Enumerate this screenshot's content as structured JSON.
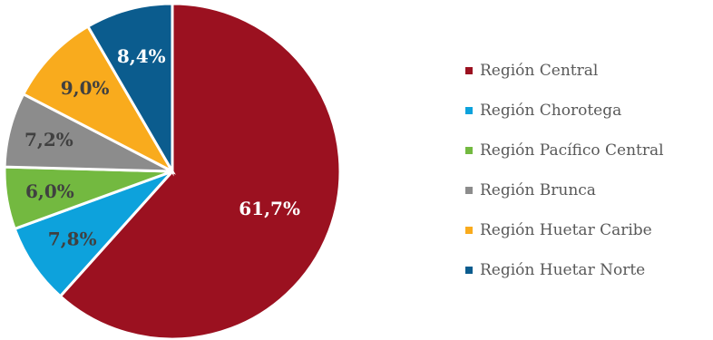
{
  "chart_data": {
    "type": "pie",
    "categories": [
      "Región Central",
      "Región Chorotega",
      "Región Pacífico Central",
      "Región Brunca",
      "Región Huetar Caribe",
      "Región Huetar Norte"
    ],
    "values": [
      61.7,
      7.8,
      6.0,
      7.2,
      9.0,
      8.4
    ],
    "labels": [
      "61,7%",
      "7,8%",
      "6,0%",
      "7,2%",
      "9,0%",
      "8,4%"
    ],
    "colors": [
      "#9b1120",
      "#0da2dc",
      "#73b940",
      "#8c8c8c",
      "#f9ab1d",
      "#0b5c8e"
    ],
    "label_colors": [
      "#ffffff",
      "#404040",
      "#404040",
      "#404040",
      "#404040",
      "#ffffff"
    ],
    "legend_position": "right",
    "start": "top, clockwise"
  }
}
